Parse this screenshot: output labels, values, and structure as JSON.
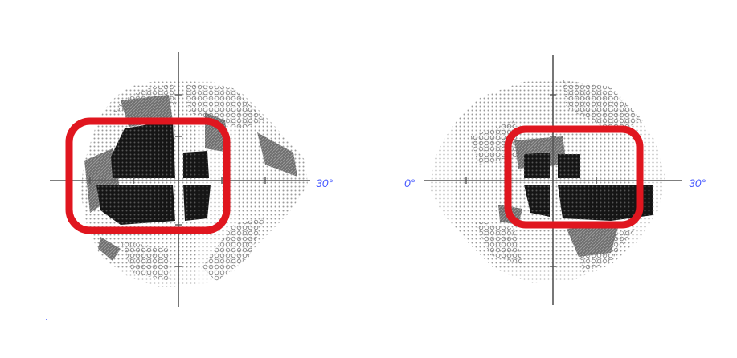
{
  "fields": [
    {
      "name": "left-visual-field",
      "right_label": "30°",
      "left_label": "",
      "highlight_color": "#e0161f"
    },
    {
      "name": "right-visual-field",
      "right_label": "30°",
      "left_label": "0°",
      "highlight_color": "#e0161f"
    }
  ],
  "colors": {
    "dense": "#111111",
    "medium": "#6f6f6f",
    "light": "#a9a9a9",
    "dots": "#9a9a9a",
    "axis": "#555555",
    "label": "#4a5cff"
  }
}
